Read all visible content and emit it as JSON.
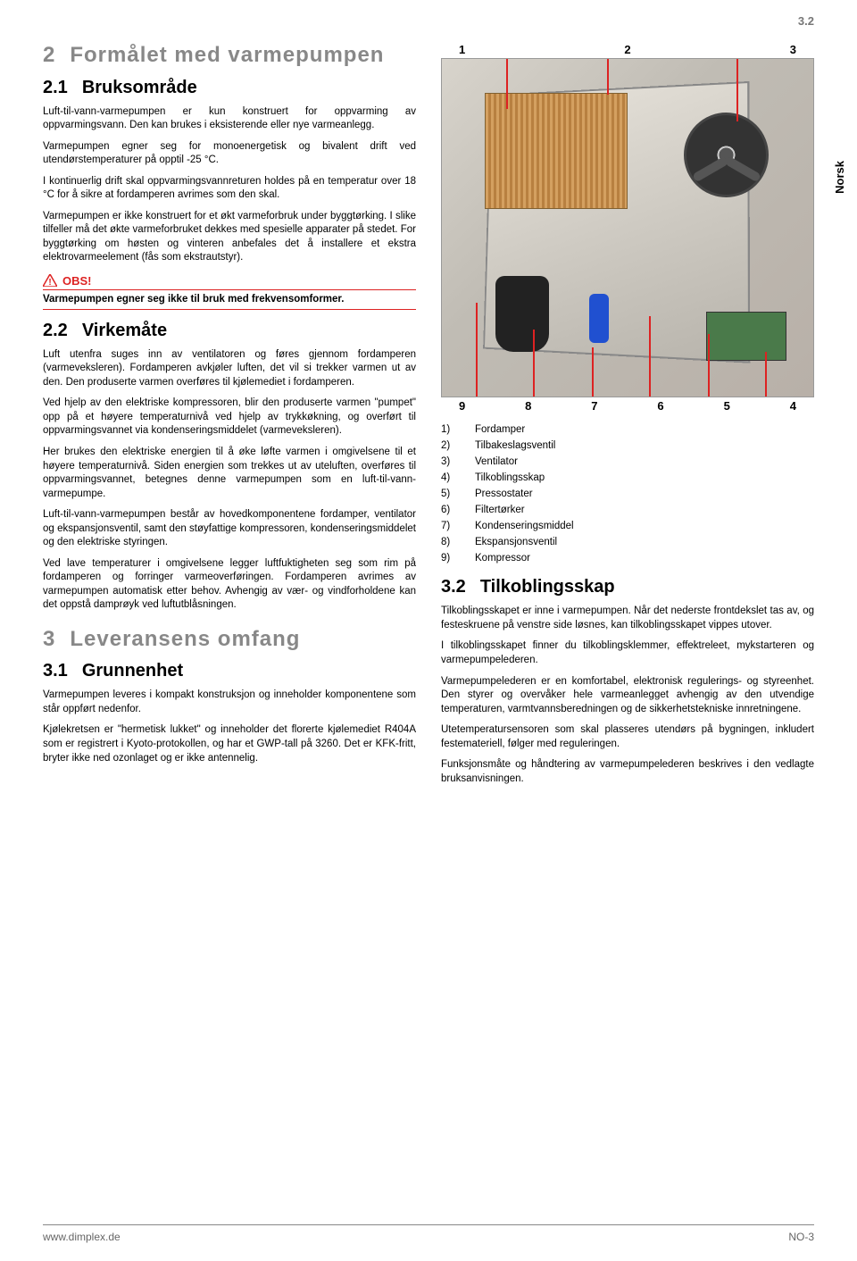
{
  "page_number_top": "3.2",
  "sidebar_tab": "Norsk",
  "left": {
    "h1_num": "2",
    "h1_title": "Formålet med varmepumpen",
    "h2a_num": "2.1",
    "h2a_title": "Bruksområde",
    "p1": "Luft-til-vann-varmepumpen er kun konstruert for oppvarming av oppvarmingsvann. Den kan brukes i eksisterende eller nye varmeanlegg.",
    "p2": "Varmepumpen egner seg for monoenergetisk og bivalent drift ved utendørstemperaturer på opptil -25 °C.",
    "p3": "I kontinuerlig drift skal oppvarmingsvannreturen holdes på en temperatur over 18 °C for å sikre at fordamperen avrimes som den skal.",
    "p4": "Varmepumpen er ikke konstruert for et økt varmeforbruk under byggtørking. I slike tilfeller må det økte varmeforbruket dekkes med spesielle apparater på stedet. For byggtørking om høsten og vinteren anbefales det å installere et ekstra elektrovarmeelement (fås som ekstrautstyr).",
    "obs_label": "OBS!",
    "obs_text": "Varmepumpen egner seg ikke til bruk med frekvensomformer.",
    "h2b_num": "2.2",
    "h2b_title": "Virkemåte",
    "p5": "Luft utenfra suges inn av ventilatoren og føres gjennom fordamperen (varmeveksleren). Fordamperen avkjøler luften, det vil si trekker varmen ut av den. Den produserte varmen overføres til kjølemediet i fordamperen.",
    "p6": "Ved hjelp av den elektriske kompressoren, blir den produserte varmen \"pumpet\" opp på et høyere temperaturnivå ved hjelp av trykkøkning, og overført til oppvarmingsvannet via kondenseringsmiddelet (varmeveksleren).",
    "p7": "Her brukes den elektriske energien til å øke løfte varmen i omgivelsene til et høyere temperaturnivå. Siden energien som trekkes ut av uteluften, overføres til oppvarmingsvannet, betegnes denne varmepumpen som en luft-til-vann-varmepumpe.",
    "p8": "Luft-til-vann-varmepumpen består av hovedkomponentene fordamper, ventilator og ekspansjonsventil, samt den støyfattige kompressoren, kondenseringsmiddelet og den elektriske styringen.",
    "p9": "Ved lave temperaturer i omgivelsene legger luftfuktigheten seg som rim på fordamperen og forringer varmeoverføringen. Fordamperen avrimes av varmepumpen automatisk etter behov. Avhengig av vær- og vindforholdene kan det oppstå damprøyk ved luftutblåsningen.",
    "h1b_num": "3",
    "h1b_title": "Leveransens omfang",
    "h2c_num": "3.1",
    "h2c_title": "Grunnenhet",
    "p10": "Varmepumpen leveres i kompakt konstruksjon og inneholder komponentene som står oppført nedenfor.",
    "p11": "Kjølekretsen er \"hermetisk lukket\" og inneholder det florerte kjølemediet R404A som er registrert i Kyoto-protokollen, og har et GWP-tall på 3260. Det er KFK-fritt, bryter ikke ned ozonlaget og er ikke antennelig."
  },
  "figure": {
    "top_labels": [
      "1",
      "2",
      "3"
    ],
    "bottom_labels": [
      "9",
      "8",
      "7",
      "6",
      "5",
      "4"
    ],
    "legend": [
      {
        "n": "1)",
        "t": "Fordamper"
      },
      {
        "n": "2)",
        "t": "Tilbakeslagsventil"
      },
      {
        "n": "3)",
        "t": "Ventilator"
      },
      {
        "n": "4)",
        "t": "Tilkoblingsskap"
      },
      {
        "n": "5)",
        "t": "Pressostater"
      },
      {
        "n": "6)",
        "t": "Filtertørker"
      },
      {
        "n": "7)",
        "t": "Kondenseringsmiddel"
      },
      {
        "n": "8)",
        "t": "Ekspansjonsventil"
      },
      {
        "n": "9)",
        "t": "Kompressor"
      }
    ]
  },
  "right": {
    "h2_num": "3.2",
    "h2_title": "Tilkoblingsskap",
    "p1": "Tilkoblingsskapet er inne i varmepumpen. Når det nederste frontdekslet tas av, og festeskruene på venstre side løsnes, kan tilkoblingsskapet vippes utover.",
    "p2": "I tilkoblingsskapet finner du tilkoblingsklemmer, effektreleet, mykstarteren og varmepumpelederen.",
    "p3": "Varmepumpelederen er en komfortabel, elektronisk regulerings- og styreenhet. Den styrer og overvåker hele varmeanlegget avhengig av den utvendige temperaturen, varmtvannsberedningen og de sikkerhetstekniske innretningene.",
    "p4": "Utetemperatursensoren som skal plasseres utendørs på bygningen, inkludert festemateriell, følger med reguleringen.",
    "p5": "Funksjonsmåte og håndtering av varmepumpelederen beskrives i den vedlagte bruksanvisningen."
  },
  "footer": {
    "left": "www.dimplex.de",
    "right": "NO-3"
  },
  "colors": {
    "leader_red": "#d22",
    "heading_gray": "#888"
  }
}
